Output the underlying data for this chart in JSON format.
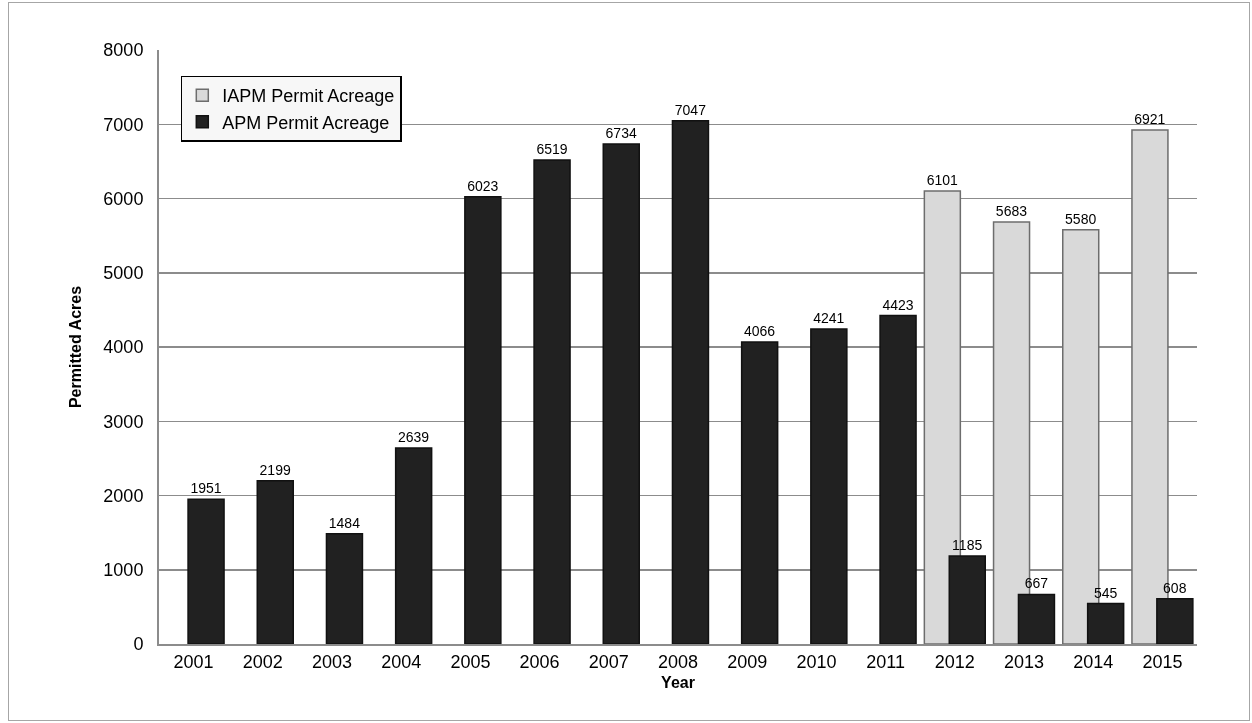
{
  "chart_data": {
    "type": "bar",
    "xlabel": "Year",
    "ylabel": "Permitted Acres",
    "categories": [
      "2001",
      "2002",
      "2003",
      "2004",
      "2005",
      "2006",
      "2007",
      "2008",
      "2009",
      "2010",
      "2011",
      "2012",
      "2013",
      "2014",
      "2015"
    ],
    "series": [
      {
        "name": "IAPM Permit Acreage",
        "color": "#d9d9d9",
        "values": [
          null,
          null,
          null,
          null,
          null,
          null,
          null,
          null,
          null,
          null,
          null,
          6101,
          5683,
          5580,
          6921
        ]
      },
      {
        "name": "APM Permit Acreage",
        "color": "#212121",
        "values": [
          1951,
          2199,
          1484,
          2639,
          6023,
          6519,
          6734,
          7047,
          4066,
          4241,
          4423,
          1185,
          667,
          545,
          608
        ]
      }
    ],
    "ylim": [
      0,
      8000
    ],
    "yticks": [
      0,
      1000,
      2000,
      3000,
      4000,
      5000,
      6000,
      7000,
      8000
    ],
    "grid": "y",
    "legend": "top left",
    "data_labels": true
  }
}
